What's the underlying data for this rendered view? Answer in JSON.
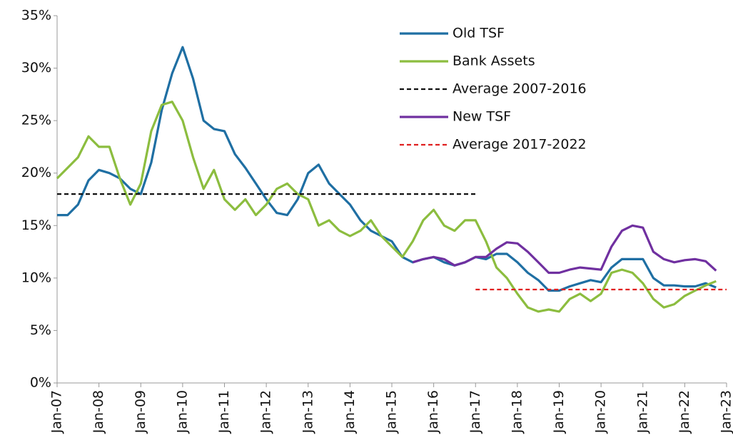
{
  "chart_data": {
    "type": "line",
    "xlim": [
      2007,
      2023
    ],
    "xticks": [
      {
        "value": 2007,
        "label": "Jan-07"
      },
      {
        "value": 2008,
        "label": "Jan-08"
      },
      {
        "value": 2009,
        "label": "Jan-09"
      },
      {
        "value": 2010,
        "label": "Jan-10"
      },
      {
        "value": 2011,
        "label": "Jan-11"
      },
      {
        "value": 2012,
        "label": "Jan-12"
      },
      {
        "value": 2013,
        "label": "Jan-13"
      },
      {
        "value": 2014,
        "label": "Jan-14"
      },
      {
        "value": 2015,
        "label": "Jan-15"
      },
      {
        "value": 2016,
        "label": "Jan-16"
      },
      {
        "value": 2017,
        "label": "Jan-17"
      },
      {
        "value": 2018,
        "label": "Jan-18"
      },
      {
        "value": 2019,
        "label": "Jan-19"
      },
      {
        "value": 2020,
        "label": "Jan-20"
      },
      {
        "value": 2021,
        "label": "Jan-21"
      },
      {
        "value": 2022,
        "label": "Jan-22"
      },
      {
        "value": 2023,
        "label": "Jan-23"
      }
    ],
    "ylim": [
      0,
      35
    ],
    "yticks": [
      {
        "value": 0,
        "label": "0%"
      },
      {
        "value": 5,
        "label": "5%"
      },
      {
        "value": 10,
        "label": "10%"
      },
      {
        "value": 15,
        "label": "15%"
      },
      {
        "value": 20,
        "label": "20%"
      },
      {
        "value": 25,
        "label": "25%"
      },
      {
        "value": 30,
        "label": "30%"
      },
      {
        "value": 35,
        "label": "35%"
      }
    ],
    "grid": false,
    "legend": "top-right",
    "series": [
      {
        "name": "Old TSF",
        "color": "#1f6fa3",
        "dashed": false,
        "x": [
          2007,
          2007.25,
          2007.5,
          2007.75,
          2008,
          2008.25,
          2008.5,
          2008.75,
          2009,
          2009.25,
          2009.5,
          2009.75,
          2010,
          2010.25,
          2010.5,
          2010.75,
          2011,
          2011.25,
          2011.5,
          2011.75,
          2012,
          2012.25,
          2012.5,
          2012.75,
          2013,
          2013.25,
          2013.5,
          2013.75,
          2014,
          2014.25,
          2014.5,
          2014.75,
          2015,
          2015.25,
          2015.5,
          2015.75,
          2016,
          2016.25,
          2016.5,
          2016.75,
          2017,
          2017.25,
          2017.5,
          2017.75,
          2018,
          2018.25,
          2018.5,
          2018.75,
          2019,
          2019.25,
          2019.5,
          2019.75,
          2020,
          2020.25,
          2020.5,
          2020.75,
          2021,
          2021.25,
          2021.5,
          2021.75,
          2022,
          2022.25,
          2022.5,
          2022.75
        ],
        "values": [
          16,
          16,
          17,
          19.3,
          20.3,
          20,
          19.5,
          18.5,
          18,
          21,
          26,
          29.5,
          32,
          29,
          25,
          24.2,
          24,
          21.8,
          20.5,
          19,
          17.5,
          16.2,
          16,
          17.5,
          20,
          20.8,
          19,
          18,
          17,
          15.5,
          14.5,
          14,
          13.5,
          12,
          11.5,
          11.8,
          12,
          11.5,
          11.2,
          11.5,
          12,
          11.8,
          12.3,
          12.3,
          11.5,
          10.5,
          9.8,
          8.8,
          8.8,
          9.2,
          9.5,
          9.8,
          9.6,
          11,
          11.8,
          11.8,
          11.8,
          10,
          9.3,
          9.3,
          9.2,
          9.2,
          9.5,
          9.1
        ]
      },
      {
        "name": "Bank Assets",
        "color": "#8cbd3f",
        "dashed": false,
        "x": [
          2007,
          2007.25,
          2007.5,
          2007.75,
          2008,
          2008.25,
          2008.5,
          2008.75,
          2009,
          2009.25,
          2009.5,
          2009.75,
          2010,
          2010.25,
          2010.5,
          2010.75,
          2011,
          2011.25,
          2011.5,
          2011.75,
          2012,
          2012.25,
          2012.5,
          2012.75,
          2013,
          2013.25,
          2013.5,
          2013.75,
          2014,
          2014.25,
          2014.5,
          2014.75,
          2015,
          2015.25,
          2015.5,
          2015.75,
          2016,
          2016.25,
          2016.5,
          2016.75,
          2017,
          2017.25,
          2017.5,
          2017.75,
          2018,
          2018.25,
          2018.5,
          2018.75,
          2019,
          2019.25,
          2019.5,
          2019.75,
          2020,
          2020.25,
          2020.5,
          2020.75,
          2021,
          2021.25,
          2021.5,
          2021.75,
          2022,
          2022.25,
          2022.5,
          2022.75
        ],
        "values": [
          19.5,
          20.5,
          21.5,
          23.5,
          22.5,
          22.5,
          19.5,
          17,
          19,
          24,
          26.5,
          26.8,
          25,
          21.5,
          18.5,
          20.3,
          17.5,
          16.5,
          17.5,
          16,
          17,
          18.5,
          19,
          18,
          17.5,
          15,
          15.5,
          14.5,
          14,
          14.5,
          15.5,
          14,
          13,
          12,
          13.5,
          15.5,
          16.5,
          15,
          14.5,
          15.5,
          15.5,
          13.5,
          11,
          10,
          8.5,
          7.2,
          6.8,
          7,
          6.8,
          8,
          8.5,
          7.8,
          8.5,
          10.5,
          10.8,
          10.5,
          9.5,
          8,
          7.2,
          7.5,
          8.3,
          8.8,
          9.3,
          9.7
        ]
      },
      {
        "name": "Average 2007-2016",
        "color": "#111111",
        "dashed": true,
        "x": [
          2007,
          2017
        ],
        "values": [
          18,
          18
        ]
      },
      {
        "name": "New TSF",
        "color": "#7030a0",
        "dashed": false,
        "x": [
          2015.5,
          2015.75,
          2016,
          2016.25,
          2016.5,
          2016.75,
          2017,
          2017.25,
          2017.5,
          2017.75,
          2018,
          2018.25,
          2018.5,
          2018.75,
          2019,
          2019.25,
          2019.5,
          2019.75,
          2020,
          2020.25,
          2020.5,
          2020.75,
          2021,
          2021.25,
          2021.5,
          2021.75,
          2022,
          2022.25,
          2022.5,
          2022.75
        ],
        "values": [
          11.5,
          11.8,
          12,
          11.8,
          11.2,
          11.5,
          12,
          12,
          12.8,
          13.4,
          13.3,
          12.5,
          11.5,
          10.5,
          10.5,
          10.8,
          11,
          10.9,
          10.8,
          13,
          14.5,
          15,
          14.8,
          12.5,
          11.8,
          11.5,
          11.7,
          11.8,
          11.6,
          10.7
        ]
      },
      {
        "name": "Average 2017-2022",
        "color": "#e02020",
        "dashed": true,
        "x": [
          2017,
          2023
        ],
        "values": [
          8.9,
          8.9
        ]
      }
    ]
  }
}
